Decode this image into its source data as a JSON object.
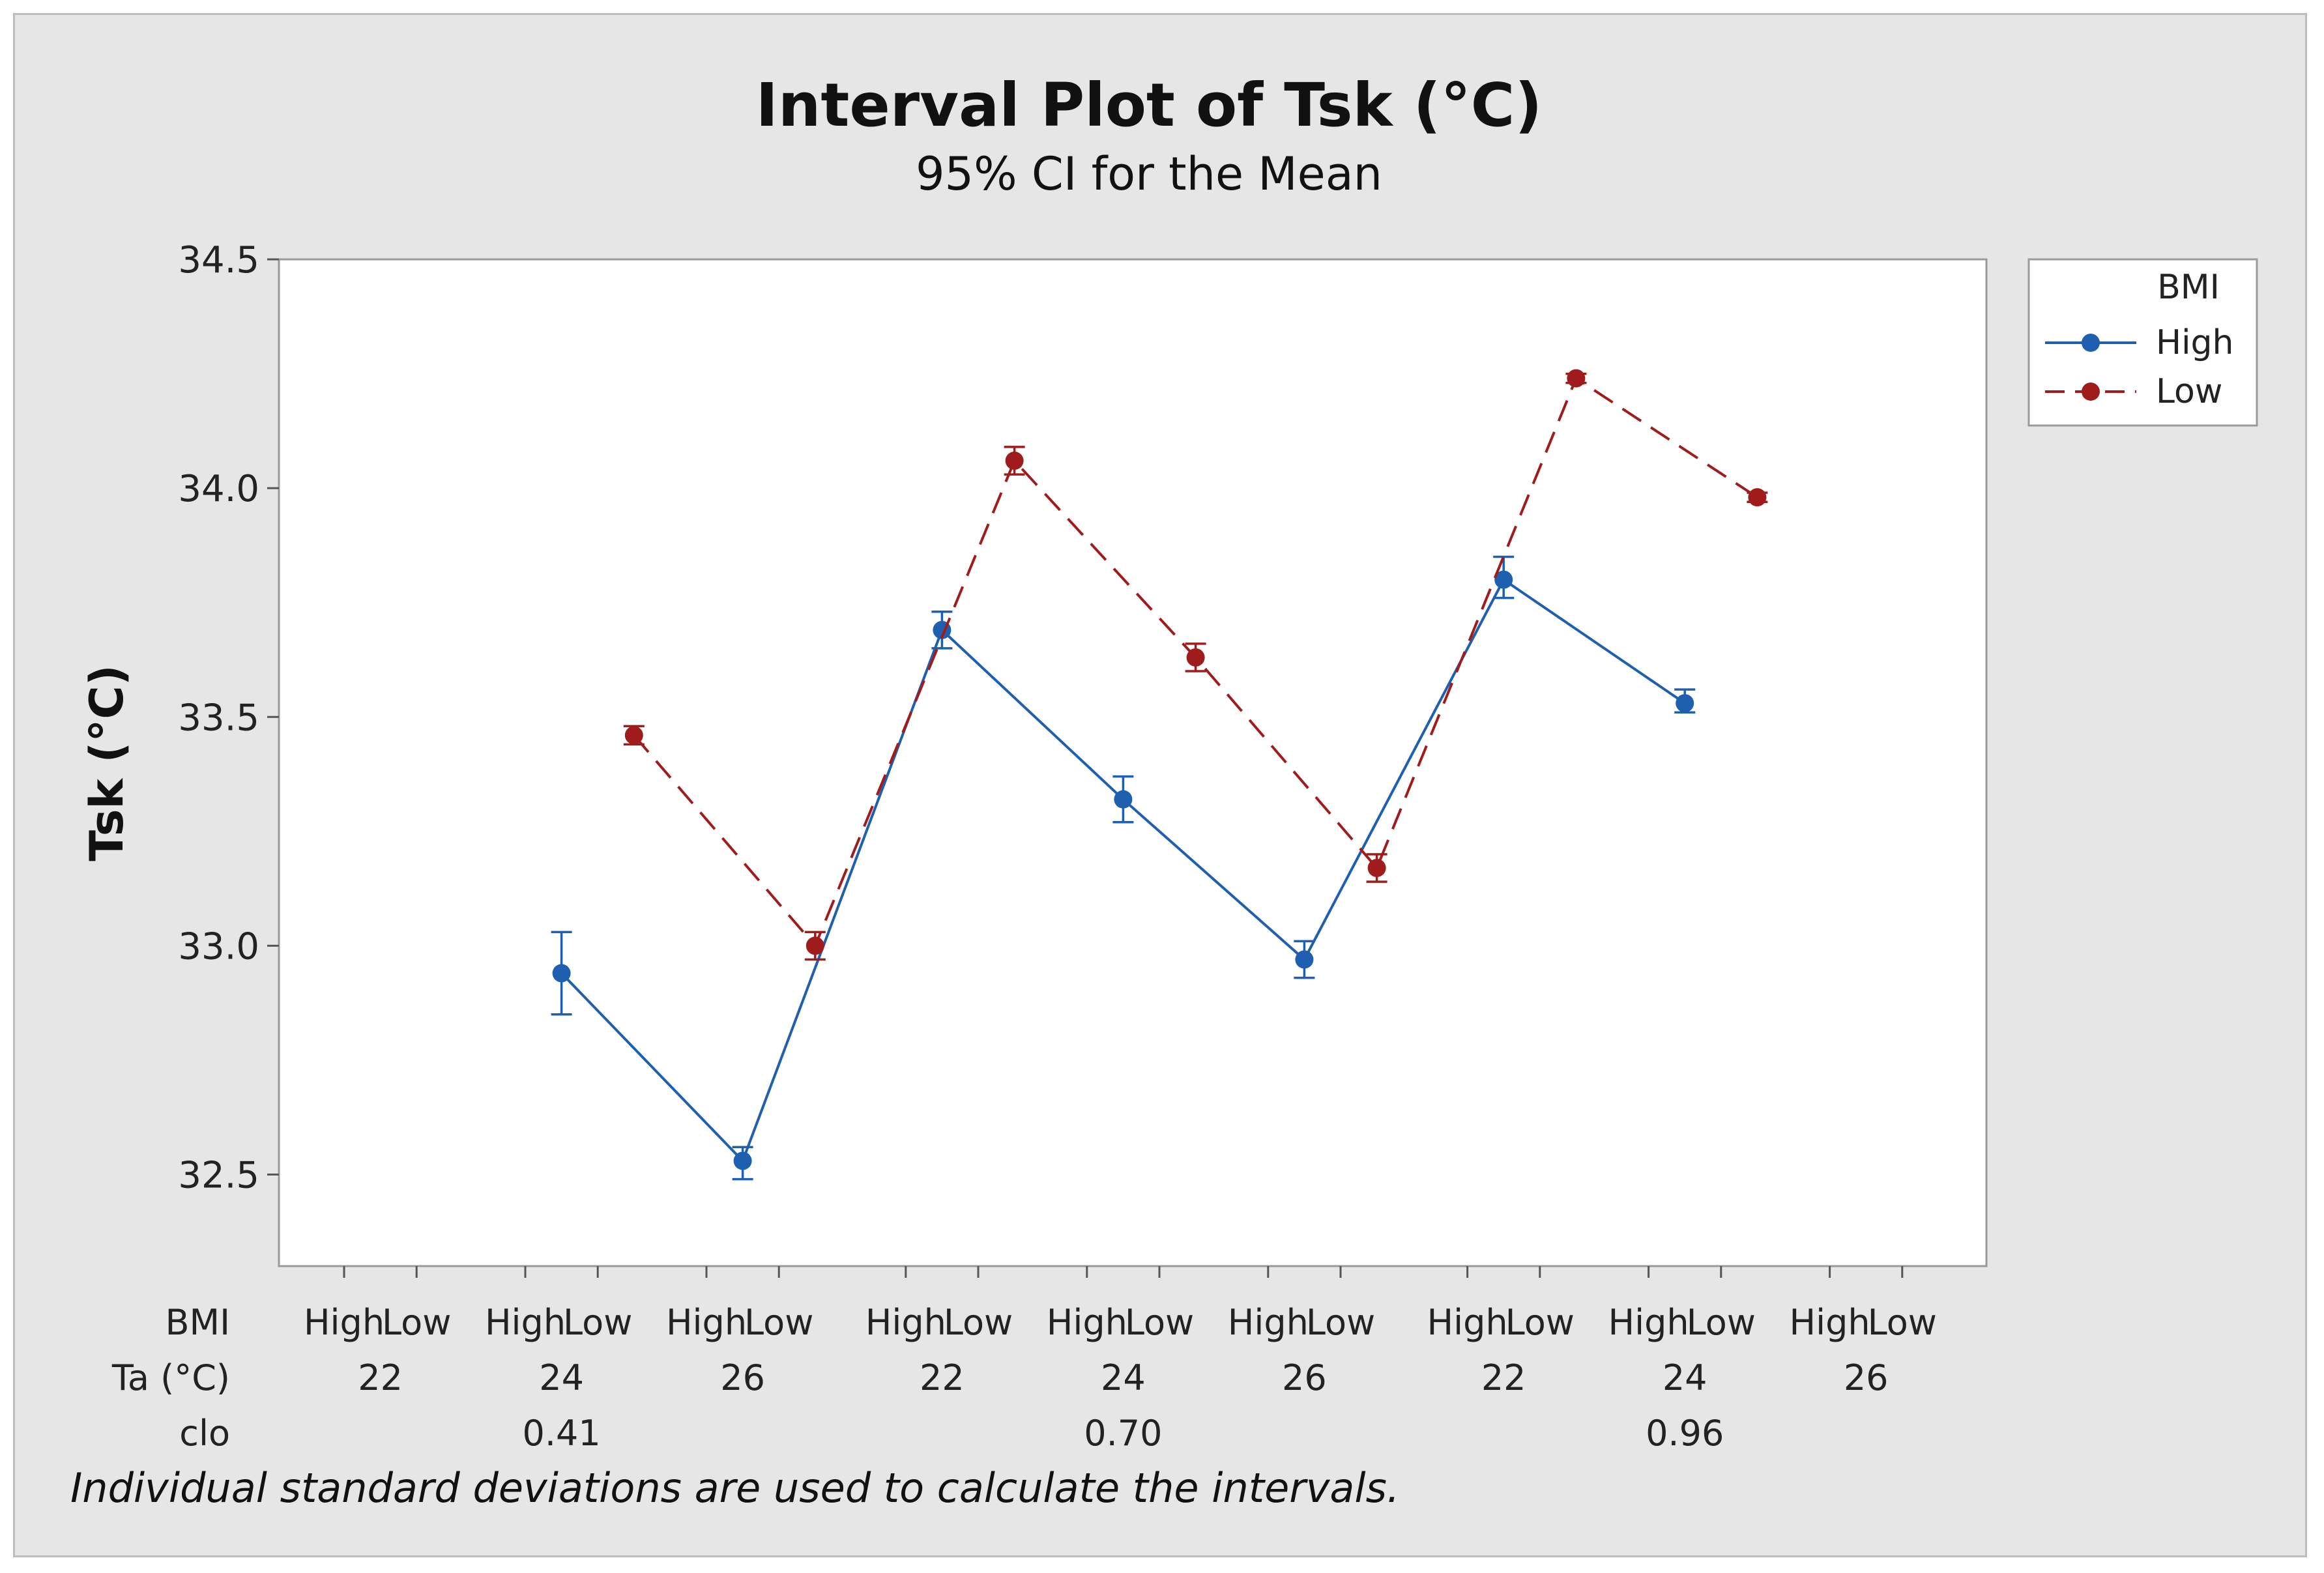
{
  "chart_data": {
    "type": "line",
    "title": "Interval Plot of Tsk (°C)",
    "subtitle": "95% CI for the Mean",
    "ylabel": "Tsk (°C)",
    "ylim": [
      32.3,
      34.5
    ],
    "yticks": [
      "32.5",
      "33.0",
      "33.5",
      "34.0",
      "34.5"
    ],
    "ytick_values": [
      32.5,
      33.0,
      33.5,
      34.0,
      34.5
    ],
    "row_labels": {
      "bmi": "BMI",
      "ta": "Ta (°C)",
      "clo": "clo"
    },
    "bmi_levels": [
      "High",
      "Low"
    ],
    "groups": [
      {
        "ta": "22",
        "clo": "0.41"
      },
      {
        "ta": "24",
        "clo": "0.41"
      },
      {
        "ta": "26",
        "clo": "0.41"
      },
      {
        "ta": "22",
        "clo": "0.70"
      },
      {
        "ta": "24",
        "clo": "0.70"
      },
      {
        "ta": "26",
        "clo": "0.70"
      },
      {
        "ta": "22",
        "clo": "0.96"
      },
      {
        "ta": "24",
        "clo": "0.96"
      },
      {
        "ta": "26",
        "clo": "0.96"
      }
    ],
    "clo_labels": [
      "0.41",
      "0.70",
      "0.96"
    ],
    "series": [
      {
        "name": "High",
        "color": "#1f5fb0",
        "dash": "solid",
        "points": [
          {
            "x": 2.0,
            "mean": 32.94,
            "lo": 32.85,
            "hi": 33.03
          },
          {
            "x": 3.0,
            "mean": 32.53,
            "lo": 32.49,
            "hi": 32.56
          },
          {
            "x": 4.1,
            "mean": 33.69,
            "lo": 33.65,
            "hi": 33.73
          },
          {
            "x": 5.1,
            "mean": 33.32,
            "lo": 33.27,
            "hi": 33.37
          },
          {
            "x": 6.1,
            "mean": 32.97,
            "lo": 32.93,
            "hi": 33.01
          },
          {
            "x": 7.2,
            "mean": 33.8,
            "lo": 33.76,
            "hi": 33.85
          },
          {
            "x": 8.2,
            "mean": 33.53,
            "lo": 33.51,
            "hi": 33.56
          }
        ]
      },
      {
        "name": "Low",
        "color": "#a01c1c",
        "dash": "dashed",
        "points": [
          {
            "x": 2.4,
            "mean": 33.46,
            "lo": 33.44,
            "hi": 33.48
          },
          {
            "x": 3.4,
            "mean": 33.0,
            "lo": 32.97,
            "hi": 33.03
          },
          {
            "x": 4.5,
            "mean": 34.06,
            "lo": 34.03,
            "hi": 34.09
          },
          {
            "x": 5.5,
            "mean": 33.63,
            "lo": 33.6,
            "hi": 33.66
          },
          {
            "x": 6.5,
            "mean": 33.17,
            "lo": 33.14,
            "hi": 33.2
          },
          {
            "x": 7.6,
            "mean": 34.24,
            "lo": 34.23,
            "hi": 34.25
          },
          {
            "x": 8.6,
            "mean": 33.98,
            "lo": 33.97,
            "hi": 33.99
          }
        ]
      }
    ],
    "legend": {
      "title": "BMI",
      "entries": [
        "High",
        "Low"
      ],
      "position": "top-right"
    },
    "footnote": "Individual standard deviations are used to calculate the intervals."
  }
}
